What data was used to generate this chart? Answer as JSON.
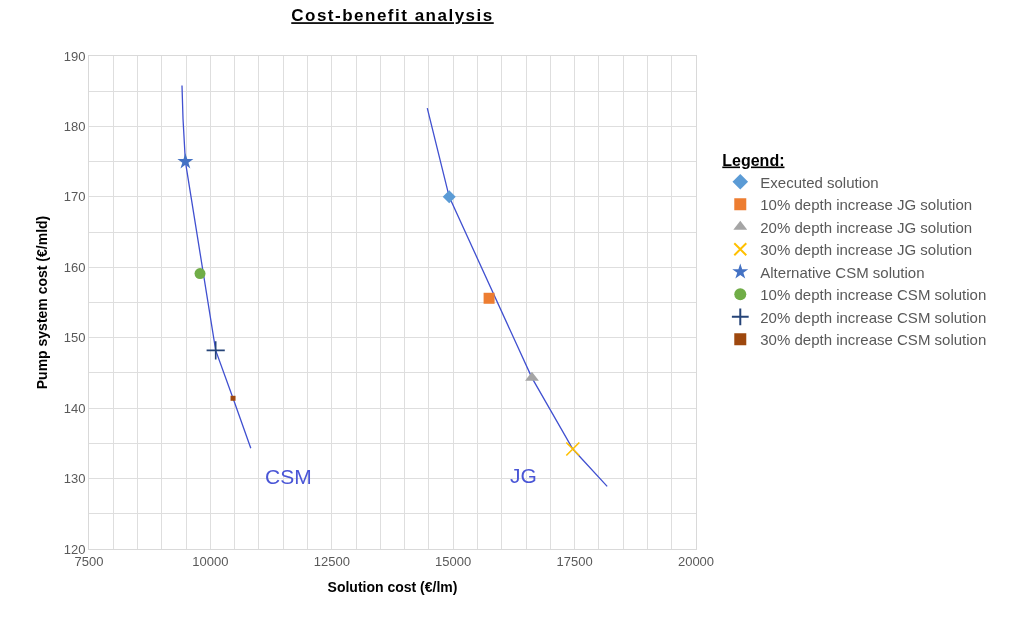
{
  "chart_data": {
    "type": "scatter",
    "title": "Cost-benefit analysis",
    "xlabel": "Solution cost (€/lm)",
    "ylabel": "Pump system cost (€/mld)",
    "legend_title": "Legend:",
    "xlim": [
      7500,
      20000
    ],
    "xticks": [
      7500,
      {
        "value": 8000,
        "label": null
      },
      {
        "value": 8500,
        "label": null
      },
      {
        "value": 9000,
        "label": null
      },
      {
        "value": 9500,
        "label": null
      },
      10000,
      {
        "value": 10500,
        "label": null
      },
      {
        "value": 11000,
        "label": null
      },
      {
        "value": 11500,
        "label": null
      },
      {
        "value": 12000,
        "label": null
      },
      12500,
      {
        "value": 13000,
        "label": null
      },
      {
        "value": 13500,
        "label": null
      },
      {
        "value": 14000,
        "label": null
      },
      {
        "value": 14500,
        "label": null
      },
      15000,
      {
        "value": 15500,
        "label": null
      },
      {
        "value": 16000,
        "label": null
      },
      {
        "value": 16500,
        "label": null
      },
      {
        "value": 17000,
        "label": null
      },
      17500,
      {
        "value": 18000,
        "label": null
      },
      {
        "value": 18500,
        "label": null
      },
      {
        "value": 19000,
        "label": null
      },
      {
        "value": 19500,
        "label": null
      },
      20000
    ],
    "ylim": [
      120,
      190
    ],
    "yticks": [
      120,
      {
        "value": 125,
        "label": null
      },
      130,
      {
        "value": 135,
        "label": null
      },
      140,
      {
        "value": 145,
        "label": null
      },
      150,
      {
        "value": 155,
        "label": null
      },
      160,
      {
        "value": 165,
        "label": null
      },
      170,
      {
        "value": 175,
        "label": null
      },
      180,
      {
        "value": 185,
        "label": null
      },
      190
    ],
    "grid": true,
    "legend": "right",
    "series": [
      {
        "type": "line",
        "color": "#4050d0",
        "marker": "none",
        "line_style": "solid",
        "x": [
          9415,
          9436,
          9485,
          10109,
          10466,
          10832
        ],
        "values": [
          185.8,
          181.1,
          175,
          148.2,
          141.4,
          134.3
        ]
      },
      {
        "type": "line",
        "color": "#4050d0",
        "marker": "none",
        "line_style": "solid",
        "x": [
          14466,
          14918,
          16622,
          17463,
          18171
        ],
        "values": [
          182.6,
          170,
          144.3,
          134.2,
          128.9
        ]
      },
      {
        "name": "Executed solution",
        "color": "#5b9bd5",
        "marker": "diamond",
        "x": [
          14918
        ],
        "values": [
          170
        ]
      },
      {
        "name": "10% depth increase JG solution",
        "color": "#ed7d31",
        "marker": "square",
        "x": [
          15739
        ],
        "values": [
          155.6
        ]
      },
      {
        "name": "20% depth increase JG solution",
        "color": "#a5a5a5",
        "marker": "triangle",
        "x": [
          16622
        ],
        "values": [
          144.3
        ]
      },
      {
        "name": "30% depth increase JG solution",
        "color": "#ffc000",
        "marker": "cross",
        "x": [
          17463
        ],
        "values": [
          134.2
        ]
      },
      {
        "name": "Alternative CSM solution",
        "color": "#4472c4",
        "marker": "star",
        "x": [
          9485
        ],
        "values": [
          175
        ]
      },
      {
        "name": "10% depth increase CSM solution",
        "color": "#70ad47",
        "marker": "circle",
        "x": [
          9786
        ],
        "values": [
          159.1
        ]
      },
      {
        "name": "20% depth increase CSM solution",
        "color": "#264478",
        "marker": "plus",
        "x": [
          10109
        ],
        "values": [
          148.2
        ]
      },
      {
        "name": "30% depth increase CSM solution",
        "color": "#9e480e",
        "marker": "square",
        "x": [
          10466
        ],
        "values": [
          141.4
        ]
      }
    ],
    "annotations": [
      "CSM",
      "JG"
    ]
  }
}
